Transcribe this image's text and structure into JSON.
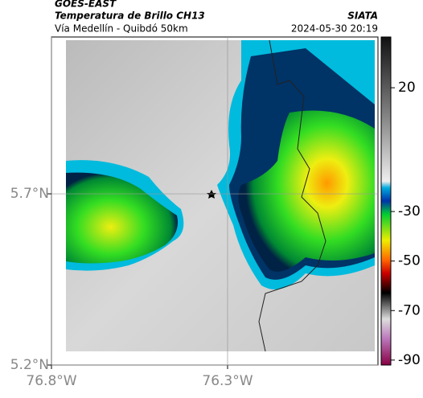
{
  "header": {
    "source": "GOES-EAST",
    "title": "Temperatura de Brillo CH13",
    "subtitle": "Vía Medellín - Quibdó 50km",
    "agency": "SIATA",
    "datetime": "2024-05-30 20:19"
  },
  "map": {
    "xlim": [
      -76.8,
      -75.873
    ],
    "ylim": [
      5.2,
      6.158
    ],
    "xticks": [
      {
        "value": -76.8,
        "label": "76.8°W"
      },
      {
        "value": -76.3,
        "label": "76.3°W"
      }
    ],
    "yticks": [
      {
        "value": 5.2,
        "label": "5.2°N"
      },
      {
        "value": 5.7,
        "label": "5.7°N"
      }
    ]
  },
  "colorbar": {
    "lim": [
      -92,
      40.5
    ],
    "ticks": [
      20,
      -30,
      -50,
      -70,
      -90
    ]
  }
}
